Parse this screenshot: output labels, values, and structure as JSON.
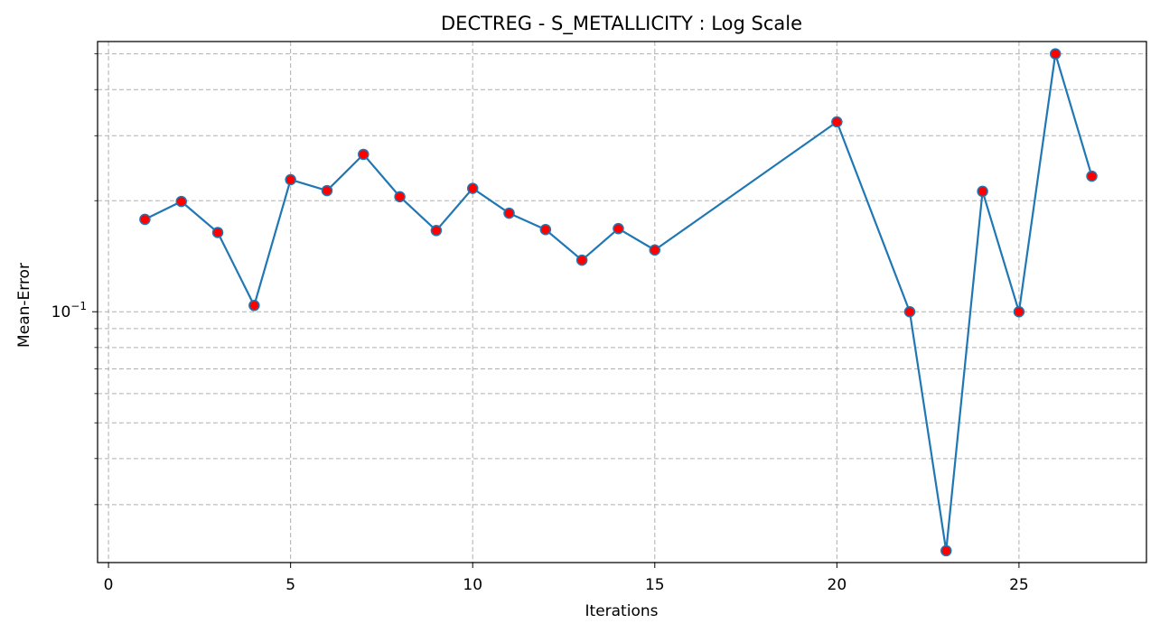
{
  "chart_data": {
    "type": "line",
    "title": "DECTREG - S_METALLICITY : Log Scale",
    "xlabel": "Iterations",
    "ylabel": "Mean-Error",
    "yscale": "log",
    "grid": true,
    "xlim": [
      -0.3,
      28.5
    ],
    "ylim": [
      0.0209,
      0.54
    ],
    "x_ticks": [
      0,
      5,
      10,
      15,
      20,
      25
    ],
    "y_major_ticks": [
      {
        "value": 0.1,
        "label": "10",
        "exponent": "−1"
      }
    ],
    "y_minor_ticks": [
      0.03,
      0.04,
      0.05,
      0.06,
      0.07,
      0.08,
      0.09,
      0.2,
      0.3,
      0.4,
      0.5
    ],
    "series": [
      {
        "line_color": "#1f77b4",
        "marker_color": "#ff0000",
        "marker_edge_color": "#1f77b4",
        "x": [
          1,
          2,
          3,
          4,
          5,
          6,
          7,
          8,
          9,
          10,
          11,
          12,
          13,
          14,
          15,
          20,
          22,
          23,
          24,
          25,
          26,
          27
        ],
        "y": [
          0.178,
          0.199,
          0.164,
          0.104,
          0.228,
          0.213,
          0.267,
          0.205,
          0.166,
          0.216,
          0.185,
          0.167,
          0.138,
          0.168,
          0.147,
          0.327,
          0.1,
          0.0225,
          0.212,
          0.1,
          0.5,
          0.233
        ]
      }
    ]
  }
}
